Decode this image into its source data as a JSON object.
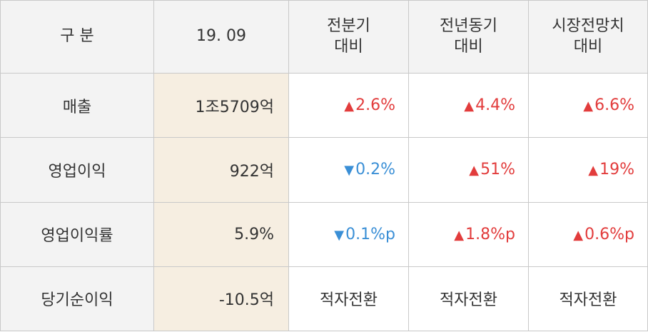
{
  "header": {
    "category": "구 분",
    "period": "19. 09",
    "col_qoq": [
      "전분기",
      "대비"
    ],
    "col_yoy": [
      "전년동기",
      "대비"
    ],
    "col_consensus": [
      "시장전망치",
      "대비"
    ]
  },
  "rows": [
    {
      "label": "매출",
      "value": "1조5709억",
      "qoq": {
        "dir": "up",
        "symbol": "▲",
        "text": "2.6%"
      },
      "yoy": {
        "dir": "up",
        "symbol": "▲",
        "text": "4.4%"
      },
      "consensus": {
        "dir": "up",
        "symbol": "▲",
        "text": "6.6%"
      }
    },
    {
      "label": "영업이익",
      "value": "922억",
      "qoq": {
        "dir": "down",
        "symbol": "▼",
        "text": "0.2%"
      },
      "yoy": {
        "dir": "up",
        "symbol": "▲",
        "text": "51%"
      },
      "consensus": {
        "dir": "up",
        "symbol": "▲",
        "text": "19%"
      }
    },
    {
      "label": "영업이익률",
      "value": "5.9%",
      "qoq": {
        "dir": "down",
        "symbol": "▼",
        "text": "0.1%p"
      },
      "yoy": {
        "dir": "up",
        "symbol": "▲",
        "text": "1.8%p"
      },
      "consensus": {
        "dir": "up",
        "symbol": "▲",
        "text": "0.6%p"
      }
    },
    {
      "label": "당기순이익",
      "value": "-10.5억",
      "qoq": {
        "text": "적자전환"
      },
      "yoy": {
        "text": "적자전환"
      },
      "consensus": {
        "text": "적자전환"
      }
    }
  ],
  "colors": {
    "up": "#e23c3c",
    "down": "#3a8fd6",
    "header_bg": "#f3f3f3",
    "highlight_bg": "#f6eee1",
    "border": "#c9c9c9"
  }
}
